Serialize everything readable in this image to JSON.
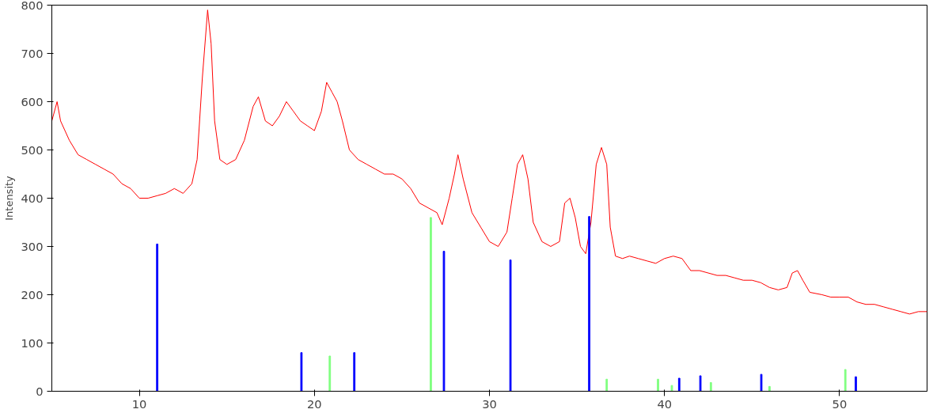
{
  "chart_data": {
    "type": "line",
    "ylabel": "Intensity",
    "xlim": [
      5,
      55
    ],
    "ylim": [
      0,
      800
    ],
    "xticks": [
      10,
      20,
      30,
      40,
      50
    ],
    "yticks": [
      0,
      100,
      200,
      300,
      400,
      500,
      600,
      700,
      800
    ],
    "grid": false,
    "series": [
      {
        "color": "#ff0000",
        "x": [
          5,
          5.3,
          5.5,
          6,
          6.5,
          7,
          7.5,
          8,
          8.5,
          9,
          9.5,
          10,
          10.5,
          11,
          11.5,
          12,
          12.5,
          13,
          13.3,
          13.6,
          13.9,
          14.1,
          14.3,
          14.6,
          15,
          15.5,
          16,
          16.5,
          16.8,
          17.2,
          17.6,
          18,
          18.4,
          18.8,
          19.2,
          19.6,
          20,
          20.4,
          20.7,
          21,
          21.3,
          21.6,
          22,
          22.5,
          23,
          23.5,
          24,
          24.5,
          25,
          25.5,
          26,
          26.5,
          27,
          27.3,
          27.7,
          28,
          28.2,
          28.5,
          29,
          29.5,
          30,
          30.5,
          31,
          31.3,
          31.6,
          31.9,
          32.2,
          32.5,
          33,
          33.5,
          34,
          34.3,
          34.6,
          34.9,
          35.2,
          35.5,
          35.8,
          36.1,
          36.4,
          36.7,
          36.9,
          37.2,
          37.6,
          38,
          38.5,
          39,
          39.5,
          40,
          40.5,
          41,
          41.5,
          42,
          42.5,
          43,
          43.5,
          44,
          44.5,
          45,
          45.5,
          46,
          46.5,
          47,
          47.3,
          47.6,
          47.9,
          48.3,
          49,
          49.5,
          50,
          50.5,
          51,
          51.5,
          52,
          52.5,
          53,
          53.5,
          54,
          54.5,
          55
        ],
        "values": [
          560,
          600,
          560,
          520,
          490,
          480,
          470,
          460,
          450,
          430,
          420,
          400,
          400,
          405,
          410,
          420,
          410,
          430,
          480,
          650,
          790,
          720,
          560,
          480,
          470,
          480,
          520,
          590,
          610,
          560,
          550,
          570,
          600,
          580,
          560,
          550,
          540,
          580,
          640,
          620,
          600,
          560,
          500,
          480,
          470,
          460,
          450,
          450,
          440,
          420,
          390,
          380,
          370,
          345,
          400,
          450,
          490,
          440,
          370,
          340,
          310,
          300,
          330,
          400,
          470,
          490,
          440,
          350,
          310,
          300,
          310,
          390,
          400,
          360,
          300,
          285,
          350,
          470,
          505,
          470,
          340,
          280,
          275,
          280,
          275,
          270,
          265,
          275,
          280,
          275,
          250,
          250,
          245,
          240,
          240,
          235,
          230,
          230,
          225,
          215,
          210,
          215,
          245,
          250,
          230,
          205,
          200,
          195,
          195,
          195,
          185,
          180,
          180,
          175,
          170,
          165,
          160,
          165,
          165
        ]
      },
      {
        "type": "bar",
        "color": "#0000ff",
        "x": [
          11.02,
          19.26,
          22.28,
          27.4,
          31.2,
          35.7,
          40.84,
          42.05,
          45.53,
          50.93
        ],
        "values": [
          305,
          80,
          80,
          290,
          272,
          362,
          27,
          32,
          35,
          30
        ]
      },
      {
        "type": "bar",
        "color": "#80ff80",
        "x": [
          20.88,
          26.65,
          36.7,
          39.63,
          40.42,
          42.65,
          46.0,
          50.33
        ],
        "values": [
          73,
          360,
          25,
          25,
          12,
          18,
          10,
          45
        ]
      }
    ]
  }
}
